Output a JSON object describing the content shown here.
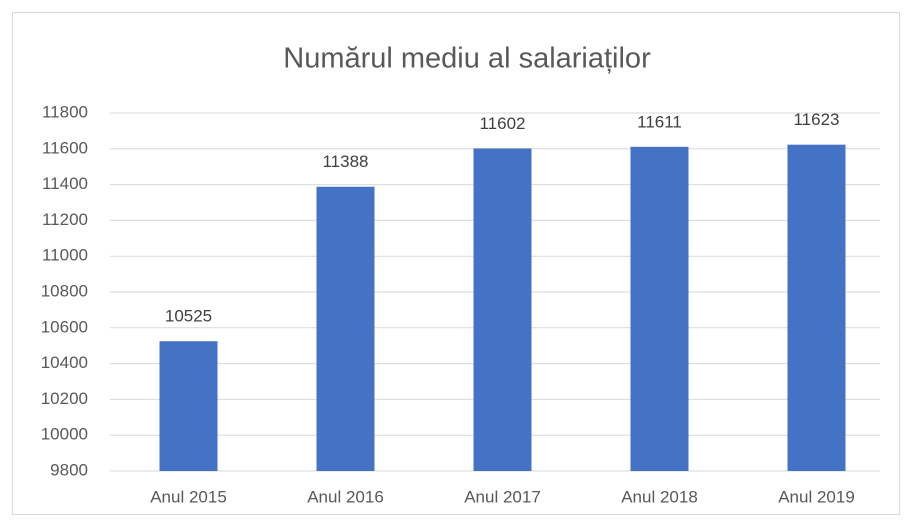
{
  "chart_data": {
    "type": "bar",
    "title": "Numărul mediu al salariaților",
    "categories": [
      "Anul 2015",
      "Anul 2016",
      "Anul 2017",
      "Anul 2018",
      "Anul 2019"
    ],
    "values": [
      10525,
      11388,
      11602,
      11611,
      11623
    ],
    "color": "#4472c4",
    "ylim": [
      9800,
      11800
    ],
    "yticks": [
      9800,
      10000,
      10200,
      10400,
      10600,
      10800,
      11000,
      11200,
      11400,
      11600,
      11800
    ],
    "grid": true
  }
}
